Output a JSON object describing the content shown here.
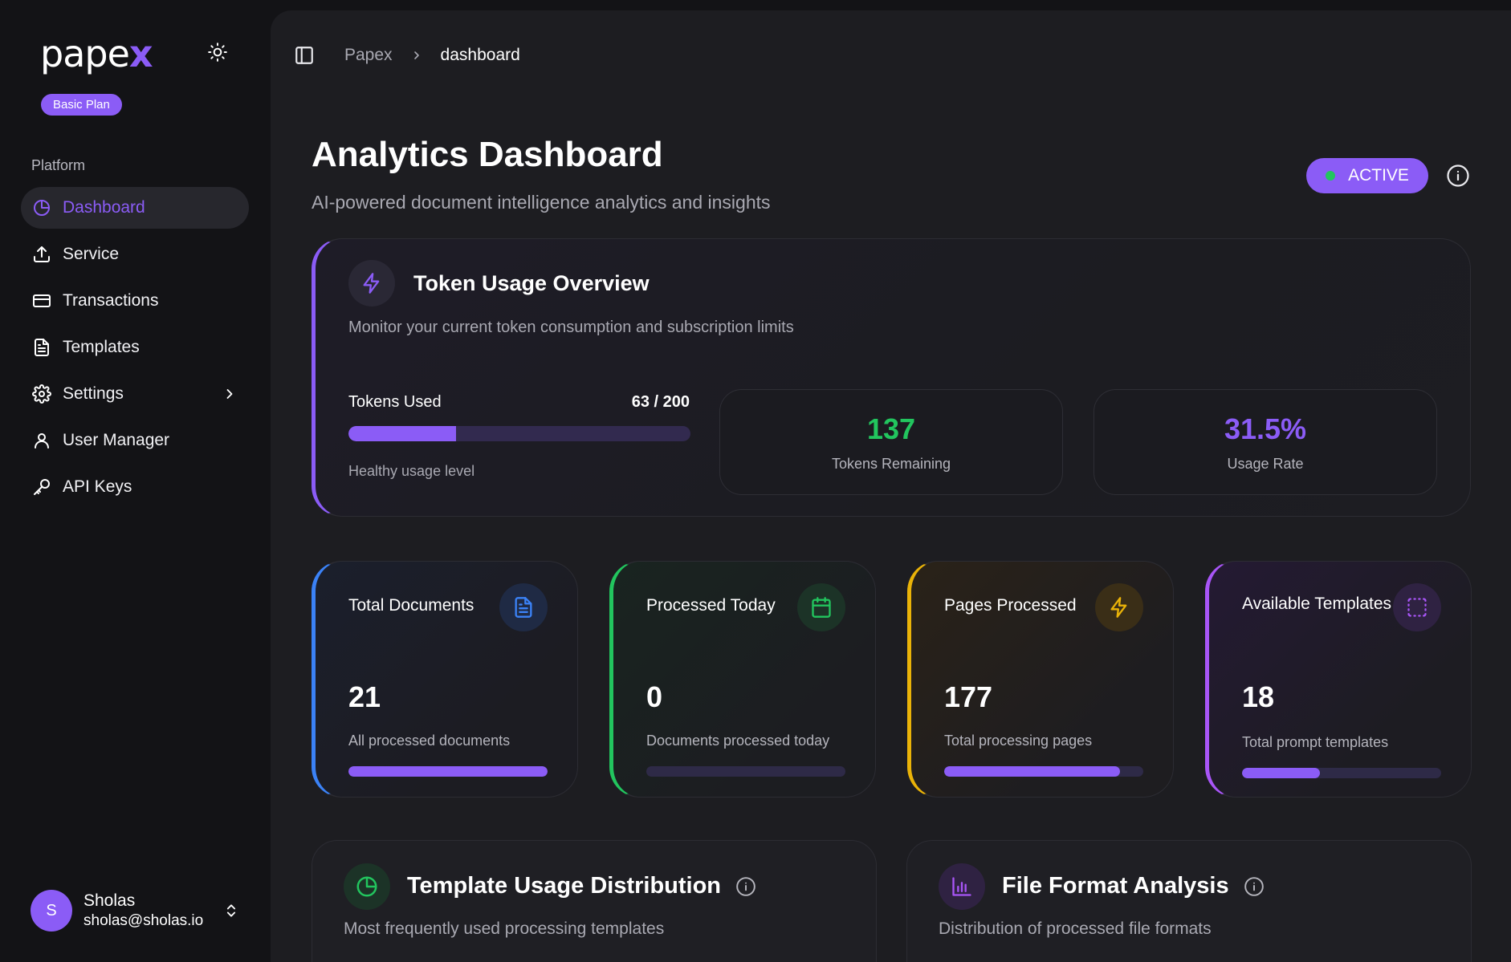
{
  "sidebar": {
    "logo_main": "pape",
    "logo_accent": "x",
    "plan_badge": "Basic Plan",
    "section_label": "Platform",
    "items": [
      {
        "label": "Dashboard",
        "icon": "pie-chart-icon",
        "active": true
      },
      {
        "label": "Service",
        "icon": "upload-icon"
      },
      {
        "label": "Transactions",
        "icon": "credit-card-icon"
      },
      {
        "label": "Templates",
        "icon": "document-icon"
      },
      {
        "label": "Settings",
        "icon": "gear-icon"
      },
      {
        "label": "User Manager",
        "icon": "user-icon"
      },
      {
        "label": "API Keys",
        "icon": "key-icon"
      }
    ],
    "user": {
      "initial": "S",
      "name": "Sholas",
      "email": "sholas@sholas.io"
    }
  },
  "breadcrumb": {
    "root": "Papex",
    "current": "dashboard"
  },
  "header": {
    "title": "Analytics Dashboard",
    "subtitle": "AI-powered document intelligence analytics and insights",
    "status": "ACTIVE"
  },
  "token_card": {
    "title": "Token Usage Overview",
    "subtitle": "Monitor your current token consumption and subscription limits",
    "used_label": "Tokens Used",
    "used_value": "63 / 200",
    "used_fraction": 0.315,
    "note": "Healthy usage level",
    "remaining_value": "137",
    "remaining_label": "Tokens Remaining",
    "rate_value": "31.5%",
    "rate_label": "Usage Rate"
  },
  "cards": [
    {
      "title": "Total Documents",
      "value": "21",
      "subtitle": "All processed documents",
      "fraction": 1.0,
      "accent": "#3b82f6",
      "icon": "file-text-icon"
    },
    {
      "title": "Processed Today",
      "value": "0",
      "subtitle": "Documents processed today",
      "fraction": 0.0,
      "accent": "#22c55e",
      "icon": "calendar-icon"
    },
    {
      "title": "Pages Processed",
      "value": "177",
      "subtitle": "Total processing pages",
      "fraction": 0.885,
      "accent": "#eab308",
      "icon": "lightning-icon"
    },
    {
      "title": "Available Templates",
      "value": "18",
      "subtitle": "Total prompt templates",
      "fraction": 0.39,
      "accent": "#a855f7",
      "icon": "dashed-square-icon"
    }
  ],
  "bottom": [
    {
      "title": "Template Usage Distribution",
      "subtitle": "Most frequently used processing templates",
      "icon": "pie-chart-icon"
    },
    {
      "title": "File Format Analysis",
      "subtitle": "Distribution of processed file formats",
      "icon": "bar-chart-icon"
    }
  ],
  "colors": {
    "accent": "#8b5cf6",
    "green": "#22c55e",
    "blue": "#3b82f6",
    "yellow": "#eab308",
    "purple": "#a855f7"
  }
}
